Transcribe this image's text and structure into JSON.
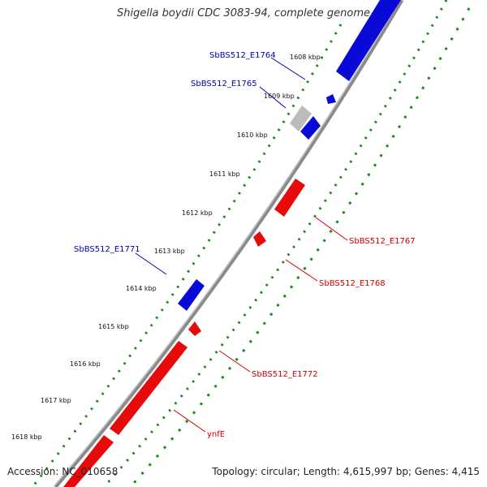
{
  "title": "Shigella boydii CDC 3083-94, complete genome",
  "accession": "Accession: NC_010658",
  "summary": "Topology: circular; Length: 4,615,997 bp; Genes: 4,415",
  "colors": {
    "forward": "#0a0ad8",
    "reverse": "#e60a0a",
    "pseudo": "#bbbbbb",
    "backbone": "#8a8a8a",
    "dots": "#1a8a1a",
    "label_blue": "#0000aa",
    "label_red": "#cc0000"
  },
  "ticks": [
    {
      "label": "1608 kbp"
    },
    {
      "label": "1609 kbp"
    },
    {
      "label": "1610 kbp"
    },
    {
      "label": "1611 kbp"
    },
    {
      "label": "1612 kbp"
    },
    {
      "label": "1613 kbp"
    },
    {
      "label": "1614 kbp"
    },
    {
      "label": "1615 kbp"
    },
    {
      "label": "1616 kbp"
    },
    {
      "label": "1617 kbp"
    },
    {
      "label": "1618 kbp"
    }
  ],
  "gene_labels": [
    {
      "name": "SbBS512_E1764",
      "strand": "forward"
    },
    {
      "name": "SbBS512_E1765",
      "strand": "forward"
    },
    {
      "name": "SbBS512_E1771",
      "strand": "forward"
    },
    {
      "name": "SbBS512_E1767",
      "strand": "reverse"
    },
    {
      "name": "SbBS512_E1768",
      "strand": "reverse"
    },
    {
      "name": "SbBS512_E1772",
      "strand": "reverse"
    },
    {
      "name": "ynfE",
      "strand": "reverse"
    }
  ]
}
